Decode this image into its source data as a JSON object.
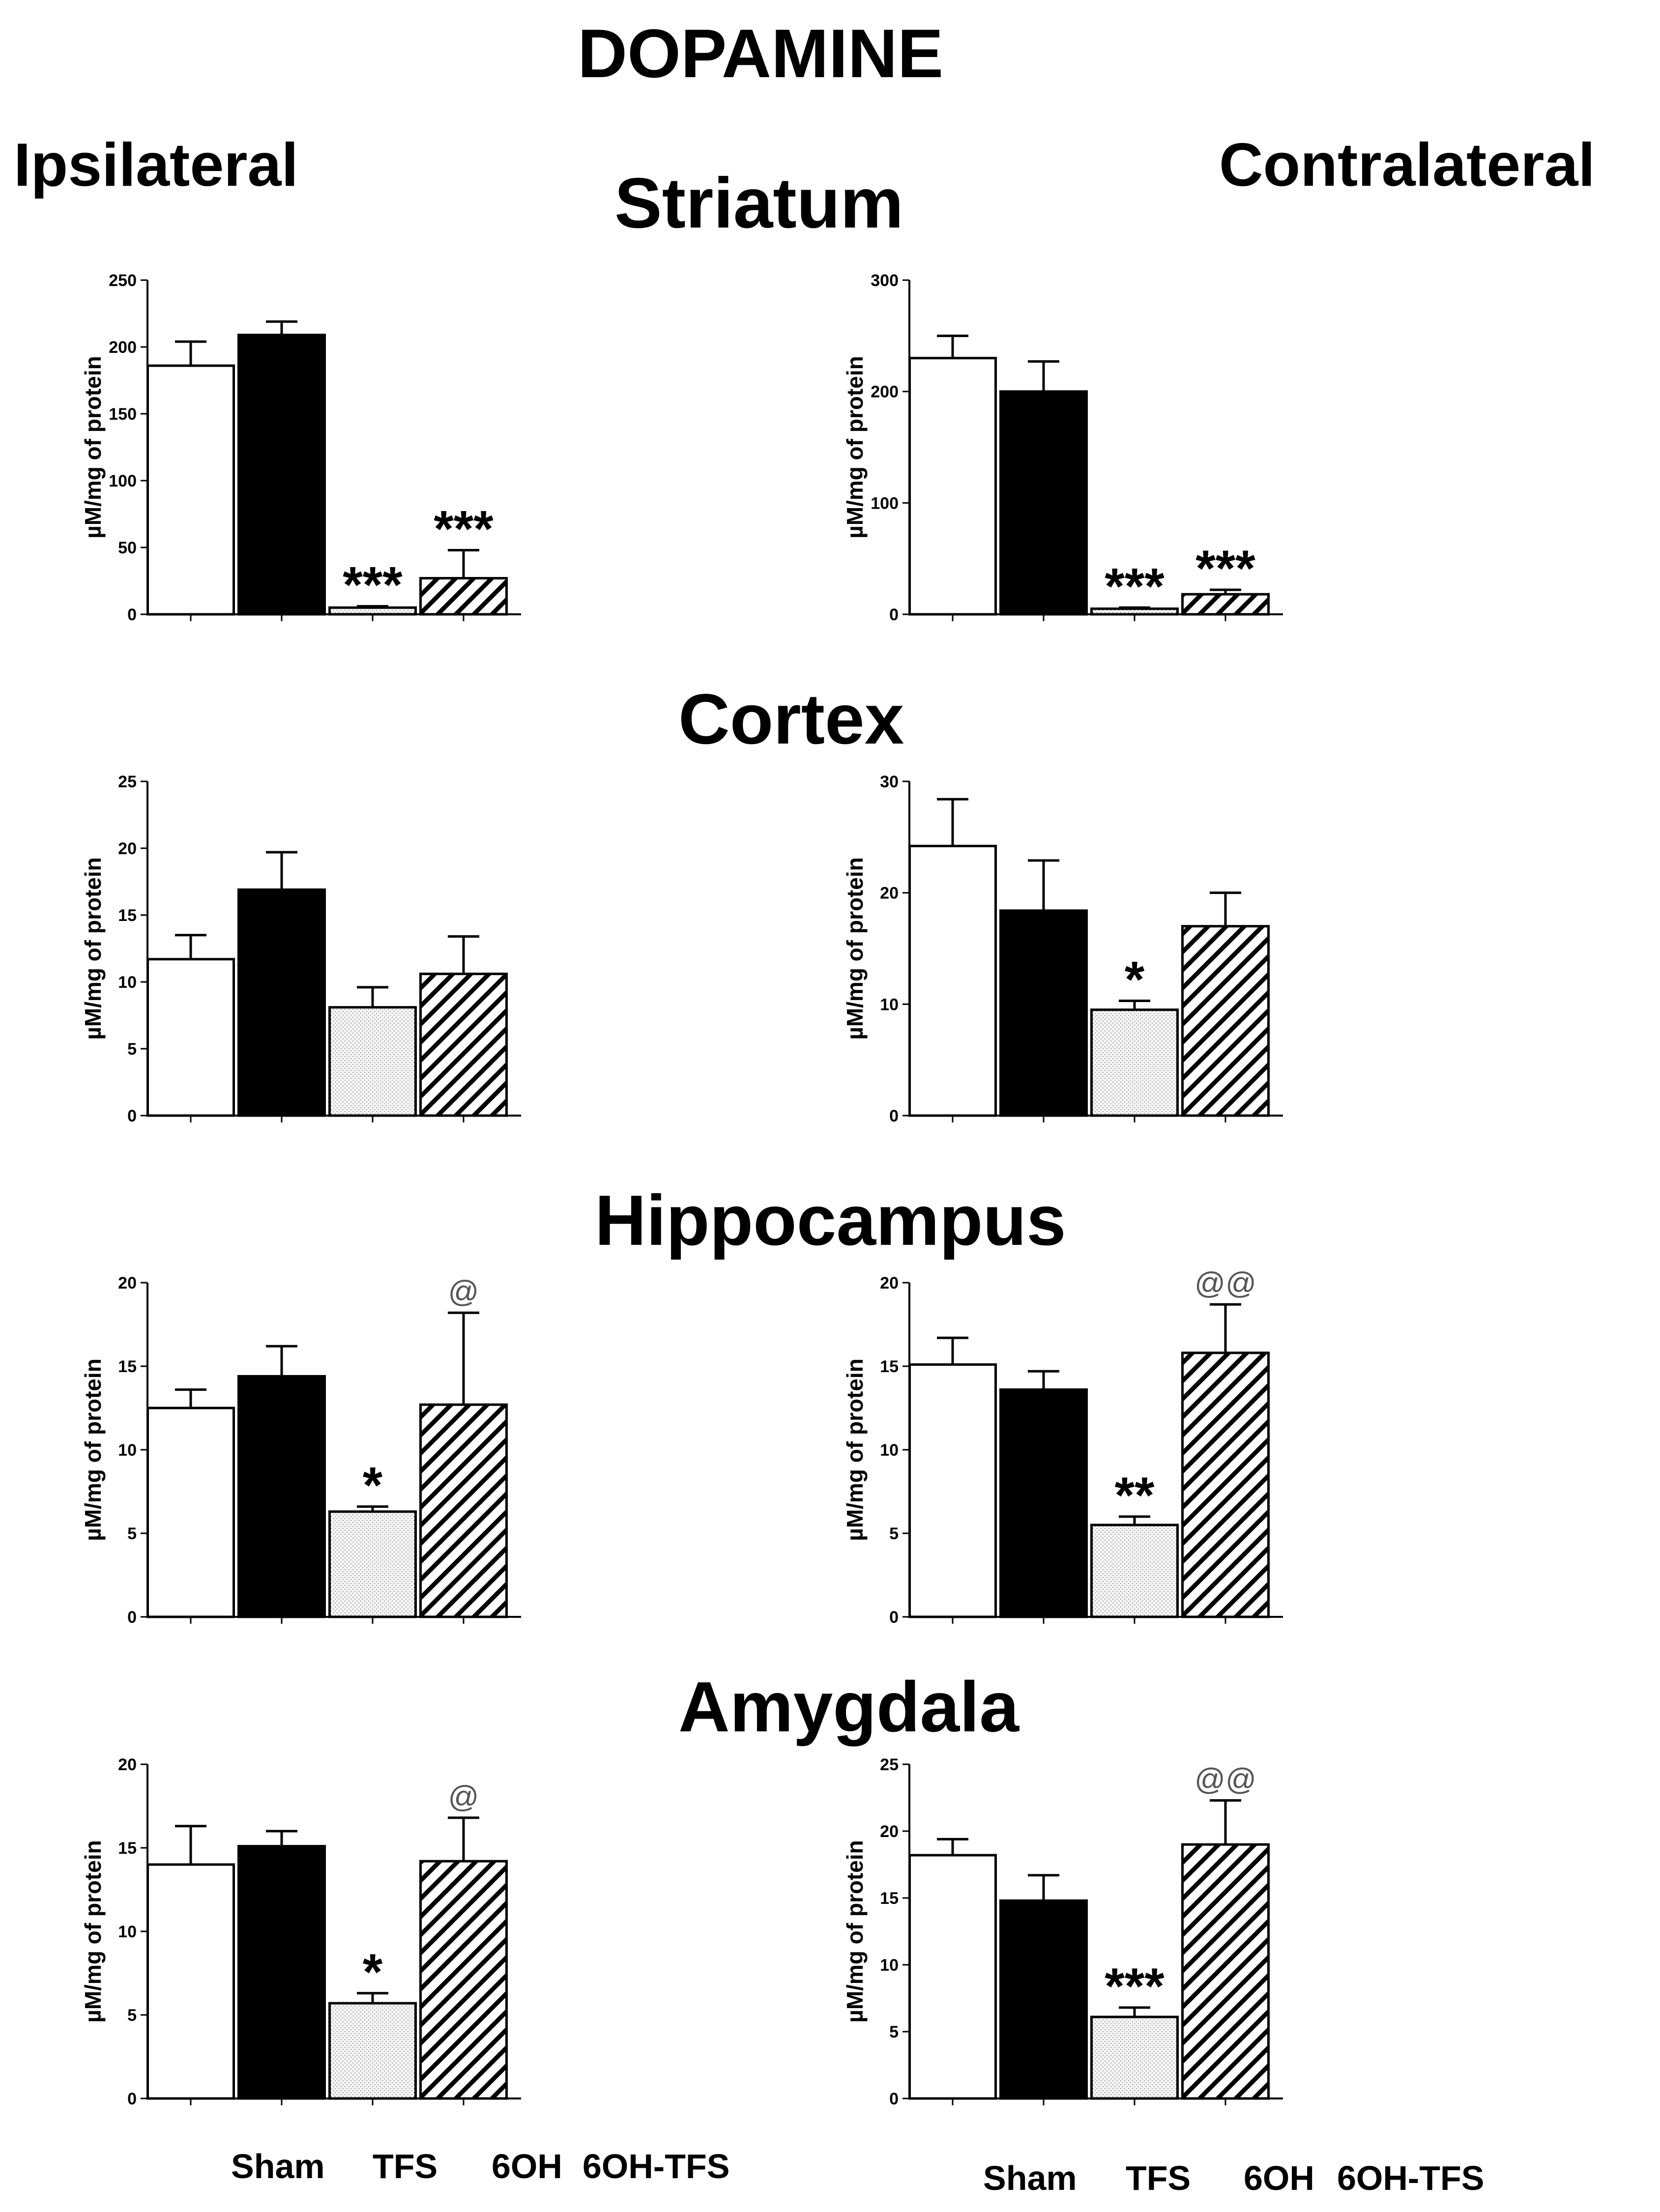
{
  "figure": {
    "title": "DOPAMINE",
    "left_heading": "Ipsilateral",
    "right_heading": "Contralateral",
    "regions": [
      "Striatum",
      "Cortex",
      "Hippocampus",
      "Amygdala"
    ],
    "bar_styles": [
      "open",
      "solid",
      "dotted",
      "hatched"
    ]
  },
  "chart_data": [
    {
      "type": "bar",
      "region": "Striatum",
      "side": "Ipsilateral",
      "ylabel": "µM/mg of protein",
      "categories": [
        "Sham",
        "TFS",
        "6OH",
        "6OH-TFS"
      ],
      "values": [
        186,
        209,
        5,
        27
      ],
      "errors": [
        18,
        10,
        1,
        21
      ],
      "significance": [
        "",
        "",
        "***",
        "***"
      ],
      "ylim": [
        0,
        250
      ],
      "yticks": [
        0,
        50,
        100,
        150,
        200,
        250
      ]
    },
    {
      "type": "bar",
      "region": "Striatum",
      "side": "Contralateral",
      "ylabel": "µM/mg of protein",
      "categories": [
        "Sham",
        "TFS",
        "6OH",
        "6OH-TFS"
      ],
      "values": [
        230,
        200,
        5,
        18
      ],
      "errors": [
        20,
        27,
        1,
        4
      ],
      "significance": [
        "",
        "",
        "***",
        "***"
      ],
      "ylim": [
        0,
        300
      ],
      "yticks": [
        0,
        100,
        200,
        300
      ]
    },
    {
      "type": "bar",
      "region": "Cortex",
      "side": "Ipsilateral",
      "ylabel": "µM/mg of protein",
      "categories": [
        "Sham",
        "TFS",
        "6OH",
        "6OH-TFS"
      ],
      "values": [
        11.7,
        16.9,
        8.1,
        10.6
      ],
      "errors": [
        1.8,
        2.8,
        1.5,
        2.8
      ],
      "significance": [
        "",
        "",
        "",
        ""
      ],
      "ylim": [
        0,
        25
      ],
      "yticks": [
        0,
        5,
        10,
        15,
        20,
        25
      ]
    },
    {
      "type": "bar",
      "region": "Cortex",
      "side": "Contralateral",
      "ylabel": "µM/mg of protein",
      "categories": [
        "Sham",
        "TFS",
        "6OH",
        "6OH-TFS"
      ],
      "values": [
        24.2,
        18.4,
        9.5,
        17.0
      ],
      "errors": [
        4.2,
        4.5,
        0.8,
        3.0
      ],
      "significance": [
        "",
        "",
        "*",
        ""
      ],
      "ylim": [
        0,
        30
      ],
      "yticks": [
        0,
        10,
        20,
        30
      ]
    },
    {
      "type": "bar",
      "region": "Hippocampus",
      "side": "Ipsilateral",
      "ylabel": "µM/mg of protein",
      "categories": [
        "Sham",
        "TFS",
        "6OH",
        "6OH-TFS"
      ],
      "values": [
        12.5,
        14.4,
        6.3,
        12.7
      ],
      "errors": [
        1.1,
        1.8,
        0.3,
        5.5
      ],
      "significance": [
        "",
        "",
        "*",
        "@"
      ],
      "ylim": [
        0,
        20
      ],
      "yticks": [
        0,
        5,
        10,
        15,
        20
      ]
    },
    {
      "type": "bar",
      "region": "Hippocampus",
      "side": "Contralateral",
      "ylabel": "µM/mg of protein",
      "categories": [
        "Sham",
        "TFS",
        "6OH",
        "6OH-TFS"
      ],
      "values": [
        15.1,
        13.6,
        5.5,
        15.8
      ],
      "errors": [
        1.6,
        1.1,
        0.5,
        2.9
      ],
      "significance": [
        "",
        "",
        "**",
        "@@"
      ],
      "ylim": [
        0,
        20
      ],
      "yticks": [
        0,
        5,
        10,
        15,
        20
      ]
    },
    {
      "type": "bar",
      "region": "Amygdala",
      "side": "Ipsilateral",
      "ylabel": "µM/mg of protein",
      "categories": [
        "Sham",
        "TFS",
        "6OH",
        "6OH-TFS"
      ],
      "values": [
        14.0,
        15.1,
        5.7,
        14.2
      ],
      "errors": [
        2.3,
        0.9,
        0.6,
        2.6
      ],
      "significance": [
        "",
        "",
        "*",
        "@"
      ],
      "ylim": [
        0,
        20
      ],
      "yticks": [
        0,
        5,
        10,
        15,
        20
      ]
    },
    {
      "type": "bar",
      "region": "Amygdala",
      "side": "Contralateral",
      "ylabel": "µM/mg of protein",
      "categories": [
        "Sham",
        "TFS",
        "6OH",
        "6OH-TFS"
      ],
      "values": [
        18.2,
        14.8,
        6.1,
        19.0
      ],
      "errors": [
        1.2,
        1.9,
        0.7,
        3.3
      ],
      "significance": [
        "",
        "",
        "***",
        "@@"
      ],
      "ylim": [
        0,
        25
      ],
      "yticks": [
        0,
        5,
        10,
        15,
        20,
        25
      ]
    }
  ]
}
